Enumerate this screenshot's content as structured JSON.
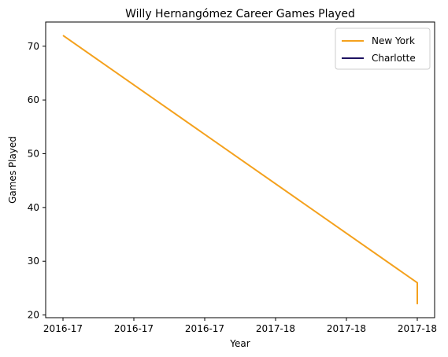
{
  "chart_data": {
    "type": "line",
    "title": "Willy Hernangómez Career Games Played",
    "xlabel": "Year",
    "ylabel": "Games Played",
    "x_ticks": [
      "2016-17",
      "2016-17",
      "2016-17",
      "2017-18",
      "2017-18",
      "2017-18"
    ],
    "x_range": [
      0,
      1
    ],
    "y_ticks": [
      20,
      30,
      40,
      50,
      60,
      70
    ],
    "ylim": [
      19.5,
      74.5
    ],
    "grid": false,
    "legend_position": "top-right",
    "series": [
      {
        "name": "New York",
        "color": "#f4a11d",
        "points": [
          {
            "x": 0.0,
            "y": 72
          },
          {
            "x": 1.0,
            "y": 26
          },
          {
            "x": 1.0,
            "y": 22
          }
        ]
      },
      {
        "name": "Charlotte",
        "color": "#1d1160",
        "points": []
      }
    ]
  }
}
